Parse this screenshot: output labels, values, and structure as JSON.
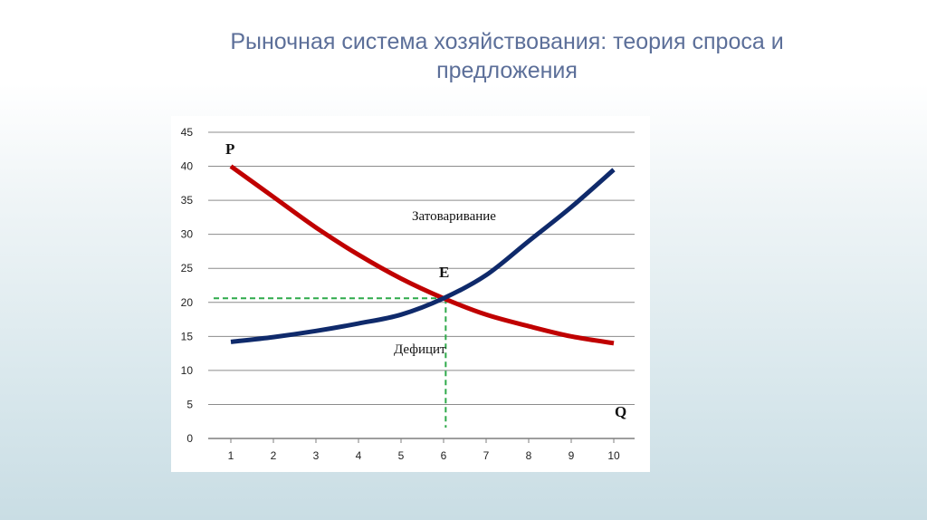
{
  "slide": {
    "title": "Рыночная система хозяйствования: теория спроса и предложения"
  },
  "chart_data": {
    "type": "line",
    "x": [
      1,
      2,
      3,
      4,
      5,
      6,
      7,
      8,
      9,
      10
    ],
    "xticks": [
      "1",
      "2",
      "3",
      "4",
      "5",
      "6",
      "7",
      "8",
      "9",
      "10"
    ],
    "yticks": [
      "0",
      "5",
      "10",
      "15",
      "20",
      "25",
      "30",
      "35",
      "40",
      "45"
    ],
    "ylim": [
      0,
      45
    ],
    "grid": "horizontal",
    "series": [
      {
        "color": "#c00000",
        "values": [
          40,
          35.5,
          31,
          27,
          23.5,
          20.6,
          18.2,
          16.5,
          15,
          14
        ]
      },
      {
        "color": "#0f2a6b",
        "values": [
          14.2,
          14.9,
          15.8,
          16.9,
          18.2,
          20.6,
          24,
          29,
          34,
          39.5
        ]
      }
    ],
    "equilibrium": {
      "x": 6.05,
      "y": 20.6,
      "color": "#2eaa4a"
    },
    "annotations": {
      "price_axis": "P",
      "quantity_axis": "Q",
      "equilibrium_label": "E",
      "surplus": "Затоваривание",
      "deficit": "Дефицит"
    }
  }
}
